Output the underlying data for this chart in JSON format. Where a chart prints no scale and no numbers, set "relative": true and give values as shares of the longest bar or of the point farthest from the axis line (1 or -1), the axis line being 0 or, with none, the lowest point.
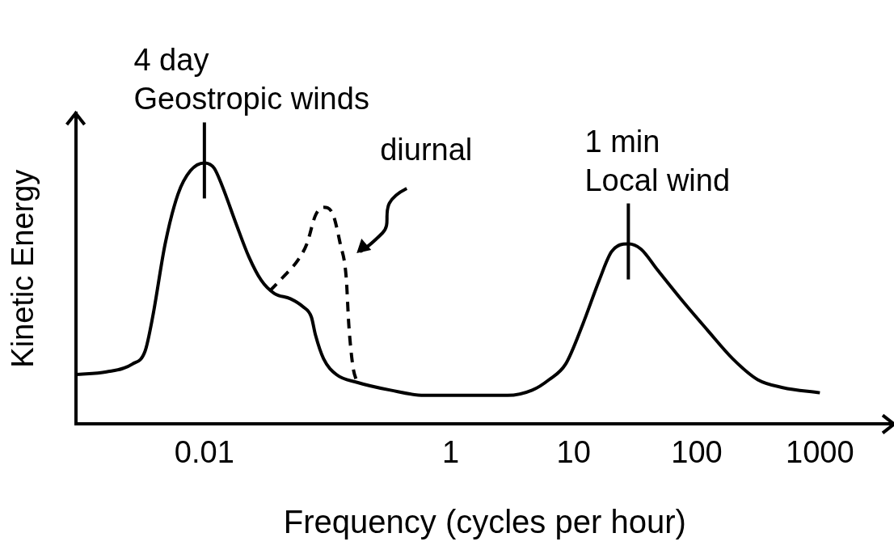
{
  "chart_data": {
    "type": "line",
    "relative": true,
    "xlabel": "Frequency (cycles per hour)",
    "ylabel": "Kinetic Energy",
    "log": "x",
    "xlim": [
      0.0009,
      4000
    ],
    "xticks": [
      0.01,
      1,
      10,
      100,
      1000
    ],
    "grid": false,
    "legend": false,
    "marker": "none",
    "series": [
      {
        "color": "#000000",
        "line_style": "solid",
        "x": [
          0.0009,
          0.0016,
          0.0026,
          0.0033,
          0.0038,
          0.0048,
          0.0061,
          0.0077,
          0.01,
          0.012,
          0.014,
          0.018,
          0.023,
          0.029,
          0.037,
          0.05,
          0.063,
          0.074,
          0.08,
          0.093,
          0.118,
          0.174,
          0.325,
          0.61,
          1.55,
          2.9,
          4.6,
          6.3,
          8.6,
          11.8,
          16.1,
          20.3,
          27.8,
          35.2,
          48,
          77,
          122,
          196,
          313,
          499,
          1000
        ],
        "values": [
          0.19,
          0.2,
          0.23,
          0.28,
          0.41,
          0.69,
          0.88,
          0.97,
          1,
          0.98,
          0.91,
          0.77,
          0.64,
          0.55,
          0.5,
          0.48,
          0.45,
          0.41,
          0.34,
          0.25,
          0.19,
          0.16,
          0.13,
          0.11,
          0.11,
          0.11,
          0.13,
          0.17,
          0.23,
          0.38,
          0.55,
          0.66,
          0.69,
          0.67,
          0.59,
          0.47,
          0.36,
          0.25,
          0.17,
          0.14,
          0.12
        ]
      },
      {
        "color": "#000000",
        "line_style": "dashed",
        "x": [
          0.034,
          0.043,
          0.058,
          0.068,
          0.08,
          0.093,
          0.109,
          0.127,
          0.142,
          0.149,
          0.161,
          0.174
        ],
        "values": [
          0.51,
          0.56,
          0.63,
          0.69,
          0.8,
          0.83,
          0.81,
          0.69,
          0.56,
          0.38,
          0.22,
          0.16
        ]
      }
    ],
    "annotations": [
      "4 day",
      {
        "text": "Geostropic winds",
        "x": 0.01,
        "y": 1
      },
      "1 min",
      {
        "text": "Local wind",
        "x": 27.8,
        "y": 0.69
      },
      "diurnal"
    ]
  }
}
